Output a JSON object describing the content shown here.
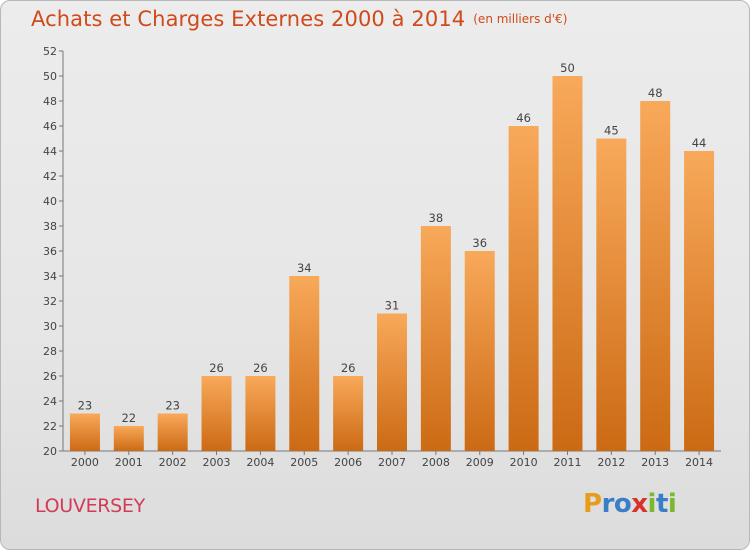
{
  "chart_title": "Achats et Charges Externes 2000 à 2014",
  "chart_unit": "(en milliers d'€)",
  "commune": "LOUVERSEY",
  "logo": {
    "letters": [
      "P",
      "r",
      "o",
      "x",
      "i",
      "t",
      "i"
    ],
    "colors": [
      "#e89c1c",
      "#3a7ec8",
      "#3a7ec8",
      "#d8322a",
      "#7ab82e",
      "#3a7ec8",
      "#7ab82e"
    ]
  },
  "colors": {
    "bar_light": "#f8a95a",
    "bar_dark": "#cc6a14",
    "title": "#d04a1a",
    "commune": "#d23a56"
  },
  "chart_data": {
    "type": "bar",
    "title": "Achats et Charges Externes 2000 à 2014",
    "subtitle": "(en milliers d'€)",
    "xlabel": "",
    "ylabel": "",
    "categories": [
      "2000",
      "2001",
      "2002",
      "2003",
      "2004",
      "2005",
      "2006",
      "2007",
      "2008",
      "2009",
      "2010",
      "2011",
      "2012",
      "2013",
      "2014"
    ],
    "values": [
      23,
      22,
      23,
      26,
      26,
      34,
      26,
      31,
      38,
      36,
      46,
      50,
      45,
      48,
      44
    ],
    "ylim": [
      20,
      52
    ],
    "yticks": [
      20,
      22,
      24,
      26,
      28,
      30,
      32,
      34,
      36,
      38,
      40,
      42,
      44,
      46,
      48,
      50,
      52
    ],
    "grid": false,
    "data_labels": true
  }
}
